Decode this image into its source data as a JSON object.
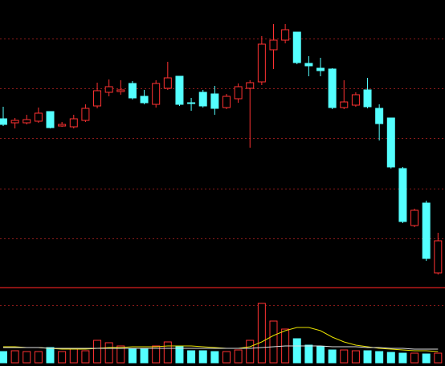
{
  "chart_data": {
    "type": "candlestick",
    "up_color": "#ff3232",
    "down_color": "#54ffff",
    "ylim": [
      0,
      358
    ],
    "yticks": [
      61,
      123,
      186,
      248,
      310
    ],
    "grid": true,
    "open": [
      210,
      205,
      205,
      207,
      219,
      201,
      200,
      208,
      226,
      243,
      244,
      254,
      238,
      228,
      248,
      263,
      230,
      243,
      241,
      224,
      235,
      248,
      256,
      296,
      308,
      318,
      279,
      273,
      272,
      224,
      227,
      246,
      223,
      211,
      148,
      77,
      105,
      18
    ],
    "high": [
      225,
      211,
      215,
      224,
      219,
      206,
      215,
      228,
      255,
      259,
      258,
      257,
      246,
      258,
      281,
      263,
      236,
      246,
      251,
      241,
      254,
      258,
      313,
      328,
      328,
      318,
      288,
      286,
      273,
      258,
      243,
      261,
      228,
      211,
      150,
      98,
      108,
      68
    ],
    "low": [
      201,
      198,
      203,
      205,
      198,
      200,
      198,
      206,
      223,
      238,
      240,
      234,
      228,
      224,
      246,
      226,
      220,
      224,
      215,
      222,
      230,
      174,
      252,
      272,
      304,
      278,
      263,
      263,
      222,
      222,
      225,
      223,
      183,
      148,
      80,
      75,
      33,
      16
    ],
    "close": [
      203,
      208,
      209,
      217,
      199,
      203,
      210,
      223,
      245,
      250,
      246,
      236,
      230,
      254,
      261,
      228,
      229,
      226,
      223,
      238,
      250,
      255,
      303,
      308,
      321,
      280,
      276,
      270,
      224,
      231,
      240,
      225,
      204,
      150,
      82,
      96,
      36,
      58
    ],
    "volume": {
      "ylim": [
        0,
        90
      ],
      "yticks": [
        72
      ],
      "values": [
        14,
        15,
        14,
        14,
        19,
        14,
        17,
        15,
        28,
        25,
        21,
        18,
        18,
        21,
        26,
        20,
        15,
        15,
        14,
        14,
        16,
        28,
        74,
        52,
        42,
        30,
        22,
        20,
        16,
        16,
        15,
        15,
        14,
        13,
        12,
        12,
        11,
        12
      ],
      "lines": [
        {
          "color": "#e8e000",
          "values": [
            20,
            20,
            19,
            19,
            18,
            17,
            17,
            17,
            18,
            19,
            19,
            20,
            20,
            20,
            21,
            21,
            21,
            20,
            19,
            18,
            18,
            20,
            26,
            34,
            40,
            44,
            44,
            40,
            32,
            26,
            22,
            20,
            18,
            17,
            16,
            15,
            15,
            14
          ]
        },
        {
          "color": "#e0e0e0",
          "values": [
            19,
            19,
            19,
            19,
            18,
            18,
            18,
            18,
            18,
            18,
            18,
            18,
            18,
            18,
            18,
            18,
            18,
            18,
            18,
            18,
            18,
            18,
            19,
            20,
            21,
            21,
            21,
            21,
            20,
            20,
            20,
            19,
            19,
            18,
            18,
            17,
            17,
            17
          ]
        }
      ]
    }
  }
}
